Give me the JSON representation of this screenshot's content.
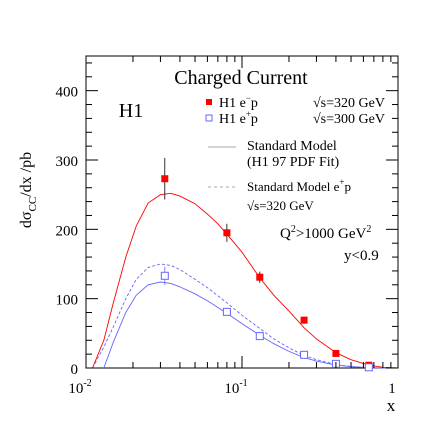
{
  "chart_data": {
    "type": "scatter",
    "title": "Charged Current",
    "experiment_label": "H1",
    "xlabel": "x",
    "ylabel_parts": {
      "main": "dσ",
      "sub": "CC",
      "rest": "/dx  /pb"
    },
    "xscale": "log",
    "xlim": [
      0.01,
      1
    ],
    "ylim": [
      0,
      450
    ],
    "x_ticks": [
      {
        "value": 0.01,
        "base": "10",
        "exp": "-2"
      },
      {
        "value": 0.1,
        "base": "10",
        "exp": "-1"
      },
      {
        "value": 1,
        "base": "1",
        "exp": ""
      }
    ],
    "y_ticks": [
      {
        "value": 0,
        "label": "0"
      },
      {
        "value": 100,
        "label": "100"
      },
      {
        "value": 200,
        "label": "200"
      },
      {
        "value": 300,
        "label": "300"
      },
      {
        "value": 400,
        "label": "400"
      }
    ],
    "grid": false,
    "legend_position": "top-right",
    "legend": {
      "em_label": {
        "text": "H1 e",
        "sup": "−",
        "after": "p"
      },
      "em_energy": "√s=320 GeV",
      "ep_label": {
        "text": "H1 e",
        "sup": "+",
        "after": "p"
      },
      "ep_energy": "√s=300 GeV",
      "sm_line1": "Standard Model",
      "sm_line2": "(H1 97 PDF Fit)",
      "sm2_line1": {
        "text": "Standard Model e",
        "sup": "+",
        "after": "p"
      },
      "sm2_line2": "√s=320 GeV"
    },
    "annotations": {
      "q2": {
        "text": "Q",
        "sup1": "2",
        "mid": ">1000 GeV",
        "sup2": "2"
      },
      "ycut": "y<0.9"
    },
    "series": [
      {
        "name": "H1 e−p",
        "kind": "points",
        "marker": "filled-square",
        "color": "#ff0000",
        "points": [
          {
            "x": 0.032,
            "y": 273,
            "err": 30
          },
          {
            "x": 0.08,
            "y": 195,
            "err": 13
          },
          {
            "x": 0.13,
            "y": 131,
            "err": 8
          },
          {
            "x": 0.25,
            "y": 69,
            "err": 5
          },
          {
            "x": 0.4,
            "y": 21,
            "err": 3
          },
          {
            "x": 0.65,
            "y": 4,
            "err": 1.5
          }
        ]
      },
      {
        "name": "H1 e+p",
        "kind": "points",
        "marker": "open-square",
        "color": "#6666ff",
        "points": [
          {
            "x": 0.032,
            "y": 133,
            "err": 13
          },
          {
            "x": 0.08,
            "y": 81,
            "err": 5
          },
          {
            "x": 0.13,
            "y": 46,
            "err": 3
          },
          {
            "x": 0.25,
            "y": 19,
            "err": 2
          },
          {
            "x": 0.4,
            "y": 6,
            "err": 1
          },
          {
            "x": 0.65,
            "y": 1,
            "err": 0.5
          }
        ]
      },
      {
        "name": "Standard Model (H1 97 PDF Fit) e−p",
        "kind": "line",
        "style": "solid",
        "color": "#ff0000",
        "x": [
          0.011,
          0.013,
          0.015,
          0.018,
          0.021,
          0.025,
          0.03,
          0.035,
          0.04,
          0.05,
          0.06,
          0.07,
          0.08,
          0.1,
          0.13,
          0.16,
          0.2,
          0.25,
          0.3,
          0.4,
          0.5,
          0.65,
          0.8,
          1.0
        ],
        "y": [
          0,
          40,
          95,
          160,
          205,
          238,
          250,
          252,
          248,
          237,
          222,
          208,
          193,
          167,
          130,
          105,
          82,
          58,
          42,
          22,
          12,
          4,
          1,
          0
        ]
      },
      {
        "name": "Standard Model (H1 97 PDF Fit) e+p",
        "kind": "line",
        "style": "solid",
        "color": "#6666ff",
        "x": [
          0.013,
          0.015,
          0.018,
          0.021,
          0.025,
          0.03,
          0.035,
          0.04,
          0.05,
          0.06,
          0.08,
          0.1,
          0.13,
          0.16,
          0.2,
          0.25,
          0.3,
          0.4,
          0.5,
          0.65,
          0.8,
          1.0
        ],
        "y": [
          0,
          38,
          80,
          105,
          120,
          124,
          122,
          117,
          107,
          97,
          79,
          64,
          47,
          35,
          24,
          15,
          10,
          4,
          2,
          0.5,
          0.1,
          0
        ]
      },
      {
        "name": "Standard Model e+p √s=320 GeV",
        "kind": "line",
        "style": "dashed",
        "color": "#6666ff",
        "x": [
          0.011,
          0.013,
          0.015,
          0.018,
          0.021,
          0.025,
          0.03,
          0.035,
          0.04,
          0.05,
          0.06,
          0.08,
          0.1,
          0.13,
          0.16,
          0.2,
          0.25,
          0.3,
          0.4,
          0.5,
          0.65,
          0.8,
          1.0
        ],
        "y": [
          0,
          30,
          60,
          100,
          128,
          145,
          150,
          148,
          142,
          128,
          116,
          94,
          76,
          57,
          42,
          29,
          18,
          12,
          5,
          2,
          0.5,
          0.1,
          0
        ]
      }
    ]
  }
}
